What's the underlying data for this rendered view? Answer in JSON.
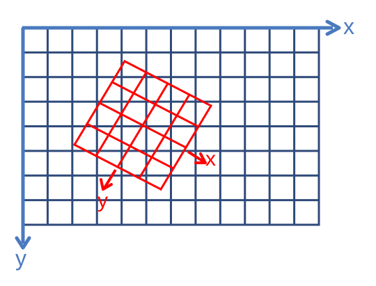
{
  "outer_grid": {
    "columns": 12,
    "rows": 8,
    "color": "#2f4a7a",
    "axis_color": "#4a7abf",
    "x_axis_label": "x",
    "y_axis_label": "y"
  },
  "inner_grid": {
    "columns": 4,
    "rows": 4,
    "color": "#ff0000",
    "x_axis_label": "x",
    "y_axis_label": "y"
  }
}
